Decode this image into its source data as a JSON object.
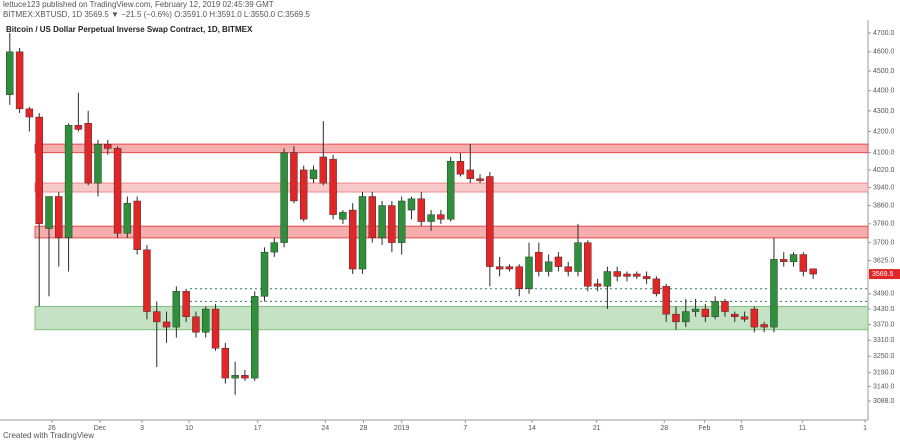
{
  "header": {
    "author_line": "lettuce123 published on TradingView.com, February 12, 2019 02:45:39 GMT",
    "symbol_line": "BITMEX:XBTUSD, 1D  3569.5 ▼ −21.5 (−0.6%) O:3591.0 H:3591.0 L:3550.0 C:3569.5"
  },
  "footer": "Created with TradingView",
  "chart_data": {
    "type": "candlestick",
    "title": "Bitcoin / US Dollar Perpetual Inverse Swap Contract, 1D, BITMEX",
    "open": [
      4380,
      4600,
      4310,
      4270,
      3760,
      3900,
      3720,
      4230,
      4240,
      3960,
      4140,
      4120,
      3740,
      3880,
      3670,
      3420,
      3380,
      3360,
      3500,
      3400,
      3340,
      3430,
      3280,
      3170,
      3180,
      3170,
      3480,
      3660,
      3700,
      4100,
      4020,
      3980,
      4080,
      4070,
      3800,
      3840,
      3590,
      3900,
      3720,
      3860,
      3700,
      3840,
      3890,
      3790,
      3820,
      3800,
      4060,
      4020,
      3980,
      3990,
      3600,
      3600,
      3600,
      3510,
      3660,
      3580,
      3640,
      3600,
      3580,
      3700,
      3530,
      3520,
      3580,
      3570,
      3570,
      3560,
      3550,
      3520,
      3410,
      3380,
      3420,
      3430,
      3400,
      3460,
      3410,
      3400,
      3430,
      3370,
      3360,
      3630,
      3620,
      3650,
      3591
    ],
    "high": [
      4700,
      4620,
      4320,
      4290,
      3900,
      3920,
      4240,
      4390,
      4300,
      4160,
      4160,
      4130,
      3900,
      3900,
      3690,
      3460,
      3420,
      3520,
      3510,
      3420,
      3440,
      3450,
      3300,
      3230,
      3200,
      3500,
      3680,
      3720,
      4120,
      4130,
      4040,
      4040,
      4250,
      4090,
      3840,
      3870,
      3920,
      3920,
      3880,
      3880,
      3900,
      3900,
      3920,
      3840,
      3840,
      4080,
      4100,
      4140,
      4000,
      4010,
      3640,
      3610,
      3610,
      3700,
      3700,
      3650,
      3660,
      3620,
      3780,
      3710,
      3550,
      3600,
      3600,
      3580,
      3580,
      3580,
      3560,
      3530,
      3440,
      3470,
      3470,
      3450,
      3480,
      3470,
      3420,
      3420,
      3440,
      3380,
      3720,
      3660,
      3660,
      3660,
      3591
    ],
    "low": [
      4330,
      4290,
      4200,
      3440,
      3480,
      3600,
      3580,
      4200,
      3950,
      3900,
      4090,
      3720,
      3720,
      3650,
      3390,
      3210,
      3300,
      3320,
      3380,
      3320,
      3320,
      3270,
      3150,
      3110,
      3160,
      3160,
      3460,
      3640,
      3680,
      3870,
      3790,
      3960,
      3950,
      3800,
      3780,
      3570,
      3570,
      3700,
      3690,
      3660,
      3650,
      3800,
      3770,
      3750,
      3780,
      3790,
      3990,
      3960,
      3960,
      3520,
      3560,
      3580,
      3480,
      3490,
      3560,
      3560,
      3580,
      3560,
      3560,
      3500,
      3500,
      3430,
      3540,
      3540,
      3550,
      3530,
      3480,
      3380,
      3350,
      3360,
      3400,
      3380,
      3390,
      3400,
      3380,
      3380,
      3340,
      3340,
      3340,
      3600,
      3600,
      3560,
      3550
    ],
    "close": [
      4600,
      4310,
      4270,
      3780,
      3900,
      3720,
      4230,
      4210,
      3960,
      4140,
      4120,
      3740,
      3870,
      3670,
      3420,
      3380,
      3360,
      3500,
      3400,
      3340,
      3430,
      3280,
      3170,
      3180,
      3170,
      3480,
      3660,
      3700,
      4100,
      3880,
      3800,
      4020,
      3960,
      3820,
      3830,
      3590,
      3900,
      3720,
      3860,
      3700,
      3880,
      3890,
      3790,
      3820,
      3800,
      4060,
      4000,
      3980,
      3970,
      3600,
      3590,
      3590,
      3510,
      3640,
      3580,
      3620,
      3600,
      3580,
      3700,
      3520,
      3520,
      3580,
      3560,
      3560,
      3560,
      3550,
      3490,
      3410,
      3380,
      3420,
      3430,
      3400,
      3460,
      3420,
      3400,
      3390,
      3360,
      3360,
      3630,
      3620,
      3650,
      3580,
      3569.5
    ],
    "up_color": "#2f8f3a",
    "down_color": "#e02626",
    "wick_color": "#2b2b2b",
    "zones": [
      {
        "from": 4100,
        "to": 4140,
        "color": "#e84a4a"
      },
      {
        "from": 3920,
        "to": 3960,
        "color": "#f08888"
      },
      {
        "from": 3720,
        "to": 3770,
        "color": "#e84a4a"
      },
      {
        "from": 3350,
        "to": 3440,
        "color": "#7fbf7f"
      }
    ],
    "levels": [
      3510,
      3460
    ],
    "last_price": 3569.5,
    "log_scale": true,
    "ylim": [
      3022,
      4770
    ],
    "yticks": [
      {
        "value": 4700,
        "label": "4700.0"
      },
      {
        "value": 4600,
        "label": "4600.0"
      },
      {
        "value": 4500,
        "label": "4500.0"
      },
      {
        "value": 4400,
        "label": "4400.0"
      },
      {
        "value": 4300,
        "label": "4300.0"
      },
      {
        "value": 4200,
        "label": "4200.0"
      },
      {
        "value": 4100,
        "label": "4100.0"
      },
      {
        "value": 4020,
        "label": "4020.0"
      },
      {
        "value": 3940,
        "label": "3940.0"
      },
      {
        "value": 3860,
        "label": "3860.0"
      },
      {
        "value": 3780,
        "label": "3780.0"
      },
      {
        "value": 3700,
        "label": "3700.0"
      },
      {
        "value": 3625,
        "label": "3625.0"
      },
      {
        "value": 3490,
        "label": "3490.0"
      },
      {
        "value": 3430,
        "label": "3430.0"
      },
      {
        "value": 3370,
        "label": "3370.0"
      },
      {
        "value": 3310,
        "label": "3310.0"
      },
      {
        "value": 3250,
        "label": "3250.0"
      },
      {
        "value": 3190,
        "label": "3190.0"
      },
      {
        "value": 3140,
        "label": "3140.0"
      },
      {
        "value": 3088,
        "label": "3088.0"
      }
    ],
    "xlim": [
      -1,
      87.6
    ],
    "xticks": [
      {
        "value": 4.3,
        "label": "26"
      },
      {
        "value": 9.2,
        "label": "Dec"
      },
      {
        "value": 13.5,
        "label": "3"
      },
      {
        "value": 18.3,
        "label": "10"
      },
      {
        "value": 25.3,
        "label": "17"
      },
      {
        "value": 32.2,
        "label": "24"
      },
      {
        "value": 36.1,
        "label": "28"
      },
      {
        "value": 40,
        "label": "2019"
      },
      {
        "value": 46.5,
        "label": "7"
      },
      {
        "value": 53.3,
        "label": "14"
      },
      {
        "value": 59.9,
        "label": "21"
      },
      {
        "value": 66.8,
        "label": "28"
      },
      {
        "value": 70.9,
        "label": "Feb"
      },
      {
        "value": 74.7,
        "label": "5"
      },
      {
        "value": 80.9,
        "label": "11"
      },
      {
        "value": 87.3,
        "label": "1"
      }
    ]
  }
}
